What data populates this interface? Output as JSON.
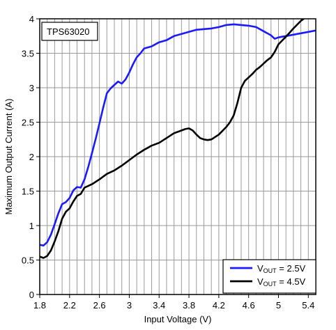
{
  "chart_data": {
    "type": "line",
    "annotation": "TPS63020",
    "xlabel": "Input Voltage (V)",
    "ylabel": "Maximum Output Current (A)",
    "xlim": [
      1.8,
      5.5
    ],
    "ylim": [
      0,
      4
    ],
    "xticks": [
      1.8,
      2.2,
      2.6,
      3,
      3.4,
      3.8,
      4.2,
      4.6,
      5,
      5.4
    ],
    "xtick_labels": [
      "1.8",
      "2.2",
      "2.6",
      "3",
      "3.4",
      "3.8",
      "4.2",
      "4.6",
      "5",
      "5.4"
    ],
    "yticks": [
      0,
      0.5,
      1,
      1.5,
      2,
      2.5,
      3,
      3.5,
      4
    ],
    "ytick_labels": [
      "0",
      "0.5",
      "1",
      "1.5",
      "2",
      "2.5",
      "3",
      "3.5",
      "4"
    ],
    "grid": true,
    "legend_position": "bottom-right",
    "series": [
      {
        "name": "V_OUT = 2.5V",
        "legend_main": "V",
        "legend_sub": "OUT",
        "legend_rest": " = 2.5V",
        "color": "#1a1aff",
        "x": [
          1.8,
          1.85,
          1.9,
          1.95,
          2.0,
          2.05,
          2.1,
          2.15,
          2.2,
          2.25,
          2.3,
          2.35,
          2.4,
          2.45,
          2.5,
          2.55,
          2.6,
          2.65,
          2.7,
          2.75,
          2.8,
          2.85,
          2.9,
          2.95,
          3.0,
          3.05,
          3.1,
          3.15,
          3.2,
          3.3,
          3.4,
          3.5,
          3.6,
          3.7,
          3.8,
          3.9,
          4.0,
          4.1,
          4.2,
          4.3,
          4.4,
          4.5,
          4.6,
          4.7,
          4.8,
          4.85,
          4.9,
          4.95,
          5.0,
          5.1,
          5.2,
          5.3,
          5.4,
          5.5
        ],
        "y": [
          0.72,
          0.71,
          0.76,
          0.87,
          1.02,
          1.18,
          1.31,
          1.34,
          1.4,
          1.51,
          1.56,
          1.55,
          1.67,
          1.85,
          2.05,
          2.26,
          2.48,
          2.71,
          2.92,
          2.99,
          3.04,
          3.09,
          3.06,
          3.12,
          3.22,
          3.34,
          3.44,
          3.5,
          3.57,
          3.6,
          3.66,
          3.69,
          3.75,
          3.78,
          3.81,
          3.84,
          3.85,
          3.86,
          3.88,
          3.91,
          3.92,
          3.91,
          3.9,
          3.88,
          3.82,
          3.79,
          3.76,
          3.71,
          3.73,
          3.75,
          3.77,
          3.79,
          3.81,
          3.83
        ]
      },
      {
        "name": "V_OUT = 4.5V",
        "legend_main": "V",
        "legend_sub": "OUT",
        "legend_rest": " = 4.5V",
        "color": "#000000",
        "x": [
          1.8,
          1.85,
          1.9,
          1.95,
          2.0,
          2.05,
          2.1,
          2.15,
          2.2,
          2.25,
          2.3,
          2.35,
          2.4,
          2.5,
          2.6,
          2.7,
          2.8,
          2.9,
          3.0,
          3.1,
          3.2,
          3.3,
          3.4,
          3.5,
          3.6,
          3.7,
          3.75,
          3.8,
          3.85,
          3.9,
          3.95,
          4.0,
          4.05,
          4.1,
          4.2,
          4.3,
          4.35,
          4.4,
          4.45,
          4.5,
          4.55,
          4.6,
          4.65,
          4.7,
          4.75,
          4.8,
          4.85,
          4.9,
          4.95,
          5.0,
          5.1,
          5.2,
          5.3,
          5.4,
          5.5
        ],
        "y": [
          0.55,
          0.53,
          0.56,
          0.64,
          0.77,
          0.92,
          1.1,
          1.2,
          1.25,
          1.35,
          1.43,
          1.46,
          1.55,
          1.6,
          1.67,
          1.75,
          1.8,
          1.87,
          1.95,
          2.03,
          2.1,
          2.16,
          2.2,
          2.27,
          2.34,
          2.38,
          2.4,
          2.41,
          2.38,
          2.32,
          2.27,
          2.25,
          2.24,
          2.25,
          2.32,
          2.43,
          2.5,
          2.6,
          2.78,
          3.0,
          3.1,
          3.15,
          3.2,
          3.26,
          3.3,
          3.35,
          3.4,
          3.44,
          3.52,
          3.63,
          3.74,
          3.86,
          3.97,
          4.05,
          4.1
        ]
      }
    ]
  }
}
